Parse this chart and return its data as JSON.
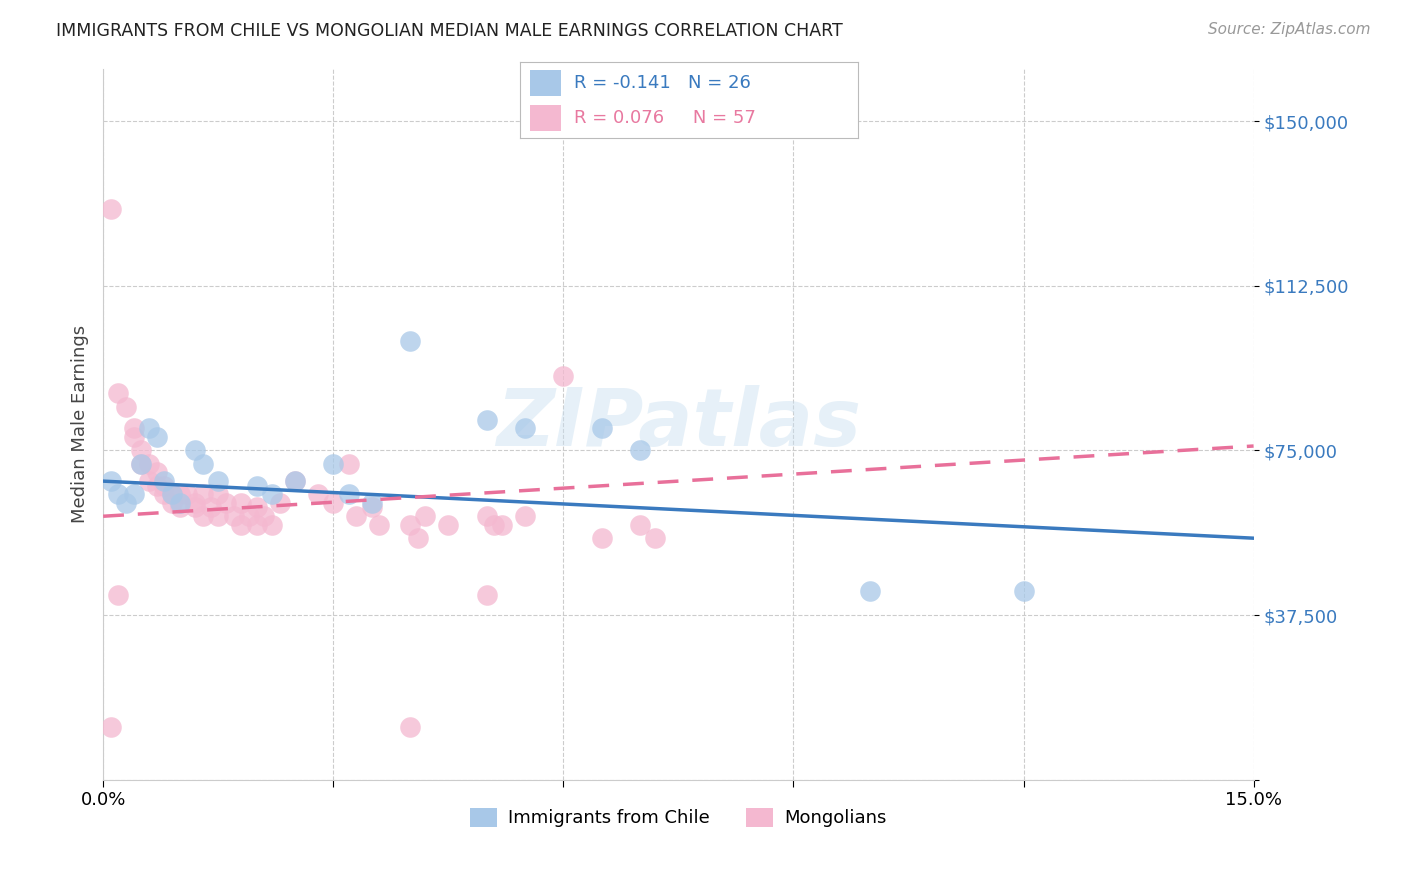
{
  "title": "IMMIGRANTS FROM CHILE VS MONGOLIAN MEDIAN MALE EARNINGS CORRELATION CHART",
  "source": "Source: ZipAtlas.com",
  "ylabel": "Median Male Earnings",
  "x_range": [
    0.0,
    0.15
  ],
  "y_range": [
    0,
    162000
  ],
  "color_blue": "#a8c8e8",
  "color_pink": "#f4b8d0",
  "color_blue_line": "#3a7abf",
  "color_pink_line": "#e8709a",
  "watermark": "ZIPatlas",
  "chile_points": [
    [
      0.001,
      68000
    ],
    [
      0.002,
      65000
    ],
    [
      0.003,
      63000
    ],
    [
      0.004,
      65000
    ],
    [
      0.005,
      72000
    ],
    [
      0.006,
      80000
    ],
    [
      0.007,
      78000
    ],
    [
      0.008,
      68000
    ],
    [
      0.009,
      65000
    ],
    [
      0.01,
      63000
    ],
    [
      0.012,
      75000
    ],
    [
      0.013,
      72000
    ],
    [
      0.015,
      68000
    ],
    [
      0.02,
      67000
    ],
    [
      0.022,
      65000
    ],
    [
      0.025,
      68000
    ],
    [
      0.03,
      72000
    ],
    [
      0.032,
      65000
    ],
    [
      0.035,
      63000
    ],
    [
      0.04,
      100000
    ],
    [
      0.05,
      82000
    ],
    [
      0.055,
      80000
    ],
    [
      0.065,
      80000
    ],
    [
      0.07,
      75000
    ],
    [
      0.1,
      43000
    ],
    [
      0.12,
      43000
    ]
  ],
  "mongolian_points": [
    [
      0.001,
      130000
    ],
    [
      0.002,
      88000
    ],
    [
      0.003,
      85000
    ],
    [
      0.004,
      80000
    ],
    [
      0.004,
      78000
    ],
    [
      0.005,
      75000
    ],
    [
      0.005,
      72000
    ],
    [
      0.006,
      72000
    ],
    [
      0.006,
      68000
    ],
    [
      0.007,
      70000
    ],
    [
      0.007,
      67000
    ],
    [
      0.008,
      67000
    ],
    [
      0.008,
      65000
    ],
    [
      0.009,
      65000
    ],
    [
      0.009,
      63000
    ],
    [
      0.01,
      65000
    ],
    [
      0.01,
      62000
    ],
    [
      0.011,
      65000
    ],
    [
      0.012,
      63000
    ],
    [
      0.012,
      62000
    ],
    [
      0.013,
      65000
    ],
    [
      0.013,
      60000
    ],
    [
      0.014,
      62000
    ],
    [
      0.015,
      65000
    ],
    [
      0.015,
      60000
    ],
    [
      0.016,
      63000
    ],
    [
      0.017,
      60000
    ],
    [
      0.018,
      63000
    ],
    [
      0.018,
      58000
    ],
    [
      0.019,
      60000
    ],
    [
      0.02,
      62000
    ],
    [
      0.02,
      58000
    ],
    [
      0.021,
      60000
    ],
    [
      0.022,
      58000
    ],
    [
      0.023,
      63000
    ],
    [
      0.025,
      68000
    ],
    [
      0.028,
      65000
    ],
    [
      0.03,
      63000
    ],
    [
      0.032,
      72000
    ],
    [
      0.033,
      60000
    ],
    [
      0.035,
      62000
    ],
    [
      0.036,
      58000
    ],
    [
      0.04,
      58000
    ],
    [
      0.041,
      55000
    ],
    [
      0.042,
      60000
    ],
    [
      0.045,
      58000
    ],
    [
      0.05,
      60000
    ],
    [
      0.051,
      58000
    ],
    [
      0.052,
      58000
    ],
    [
      0.055,
      60000
    ],
    [
      0.06,
      92000
    ],
    [
      0.065,
      55000
    ],
    [
      0.07,
      58000
    ],
    [
      0.072,
      55000
    ],
    [
      0.001,
      12000
    ],
    [
      0.04,
      12000
    ],
    [
      0.002,
      42000
    ],
    [
      0.05,
      42000
    ]
  ]
}
